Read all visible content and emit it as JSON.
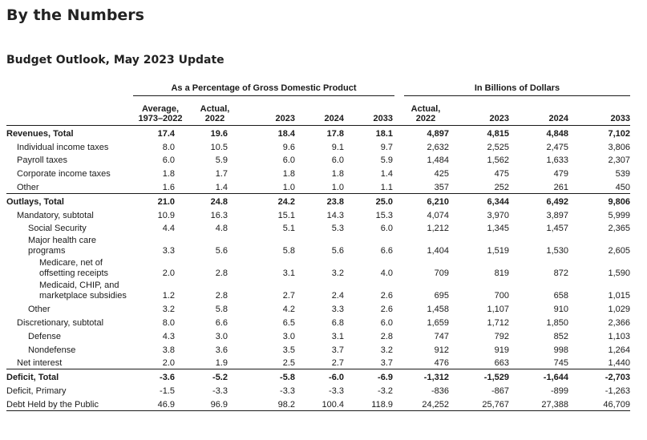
{
  "title": "By the Numbers",
  "subtitle": "Budget Outlook, May 2023 Update",
  "group_headers": {
    "pct": "As a Percentage of Gross Domestic Product",
    "billions": "In Billions of Dollars"
  },
  "columns": {
    "avg_line1": "Average,",
    "avg_line2": "1973–2022",
    "act_line1": "Actual,",
    "act_line2": "2022",
    "y2023": "2023",
    "y2024": "2024",
    "y2033": "2033",
    "bact_line1": "Actual,",
    "bact_line2": "2022",
    "b2023": "2023",
    "b2024": "2024",
    "b2033": "2033"
  },
  "rows": [
    {
      "label": "Revenues, Total",
      "indent": 0,
      "bold": true,
      "values": [
        "17.4",
        "19.6",
        "18.4",
        "17.8",
        "18.1",
        "4,897",
        "4,815",
        "4,848",
        "7,102"
      ]
    },
    {
      "label": "Individual income taxes",
      "indent": 1,
      "values": [
        "8.0",
        "10.5",
        "9.6",
        "9.1",
        "9.7",
        "2,632",
        "2,525",
        "2,475",
        "3,806"
      ]
    },
    {
      "label": "Payroll taxes",
      "indent": 1,
      "values": [
        "6.0",
        "5.9",
        "6.0",
        "6.0",
        "5.9",
        "1,484",
        "1,562",
        "1,633",
        "2,307"
      ]
    },
    {
      "label": "Corporate income taxes",
      "indent": 1,
      "values": [
        "1.8",
        "1.7",
        "1.8",
        "1.8",
        "1.4",
        "425",
        "475",
        "479",
        "539"
      ]
    },
    {
      "label": "Other",
      "indent": 1,
      "values": [
        "1.6",
        "1.4",
        "1.0",
        "1.0",
        "1.1",
        "357",
        "252",
        "261",
        "450"
      ]
    },
    {
      "label": "Outlays, Total",
      "indent": 0,
      "bold": true,
      "values": [
        "21.0",
        "24.8",
        "24.2",
        "23.8",
        "25.0",
        "6,210",
        "6,344",
        "6,492",
        "9,806"
      ]
    },
    {
      "label": "Mandatory, subtotal",
      "indent": 1,
      "values": [
        "10.9",
        "16.3",
        "15.1",
        "14.3",
        "15.3",
        "4,074",
        "3,970",
        "3,897",
        "5,999"
      ]
    },
    {
      "label": "Social Security",
      "indent": 2,
      "values": [
        "4.4",
        "4.8",
        "5.1",
        "5.3",
        "6.0",
        "1,212",
        "1,345",
        "1,457",
        "2,365"
      ]
    },
    {
      "label": "Major health care programs",
      "indent": 2,
      "tall": true,
      "values": [
        "3.3",
        "5.6",
        "5.8",
        "5.6",
        "6.6",
        "1,404",
        "1,519",
        "1,530",
        "2,605"
      ]
    },
    {
      "label": "Medicare, net of offsetting receipts",
      "indent": 3,
      "tall": true,
      "values": [
        "2.0",
        "2.8",
        "3.1",
        "3.2",
        "4.0",
        "709",
        "819",
        "872",
        "1,590"
      ]
    },
    {
      "label": "Medicaid, CHIP, and marketplace subsidies",
      "indent": 3,
      "tall": true,
      "values": [
        "1.2",
        "2.8",
        "2.7",
        "2.4",
        "2.6",
        "695",
        "700",
        "658",
        "1,015"
      ]
    },
    {
      "label": "Other",
      "indent": 2,
      "values": [
        "3.2",
        "5.8",
        "4.2",
        "3.3",
        "2.6",
        "1,458",
        "1,107",
        "910",
        "1,029"
      ]
    },
    {
      "label": "Discretionary, subtotal",
      "indent": 1,
      "values": [
        "8.0",
        "6.6",
        "6.5",
        "6.8",
        "6.0",
        "1,659",
        "1,712",
        "1,850",
        "2,366"
      ]
    },
    {
      "label": "Defense",
      "indent": 2,
      "values": [
        "4.3",
        "3.0",
        "3.0",
        "3.1",
        "2.8",
        "747",
        "792",
        "852",
        "1,103"
      ]
    },
    {
      "label": "Nondefense",
      "indent": 2,
      "values": [
        "3.8",
        "3.6",
        "3.5",
        "3.7",
        "3.2",
        "912",
        "919",
        "998",
        "1,264"
      ]
    },
    {
      "label": "Net interest",
      "indent": 1,
      "values": [
        "2.0",
        "1.9",
        "2.5",
        "2.7",
        "3.7",
        "476",
        "663",
        "745",
        "1,440"
      ]
    },
    {
      "label": "Deficit, Total",
      "indent": 0,
      "bold": true,
      "values": [
        "-3.6",
        "-5.2",
        "-5.8",
        "-6.0",
        "-6.9",
        "-1,312",
        "-1,529",
        "-1,644",
        "-2,703"
      ]
    },
    {
      "label": "Deficit, Primary",
      "indent": 0,
      "values": [
        "-1.5",
        "-3.3",
        "-3.3",
        "-3.3",
        "-3.2",
        "-836",
        "-867",
        "-899",
        "-1,263"
      ]
    },
    {
      "label": "Debt Held by the Public",
      "indent": 0,
      "values": [
        "46.9",
        "96.9",
        "98.2",
        "100.4",
        "118.9",
        "24,252",
        "25,767",
        "27,388",
        "46,709"
      ]
    }
  ]
}
